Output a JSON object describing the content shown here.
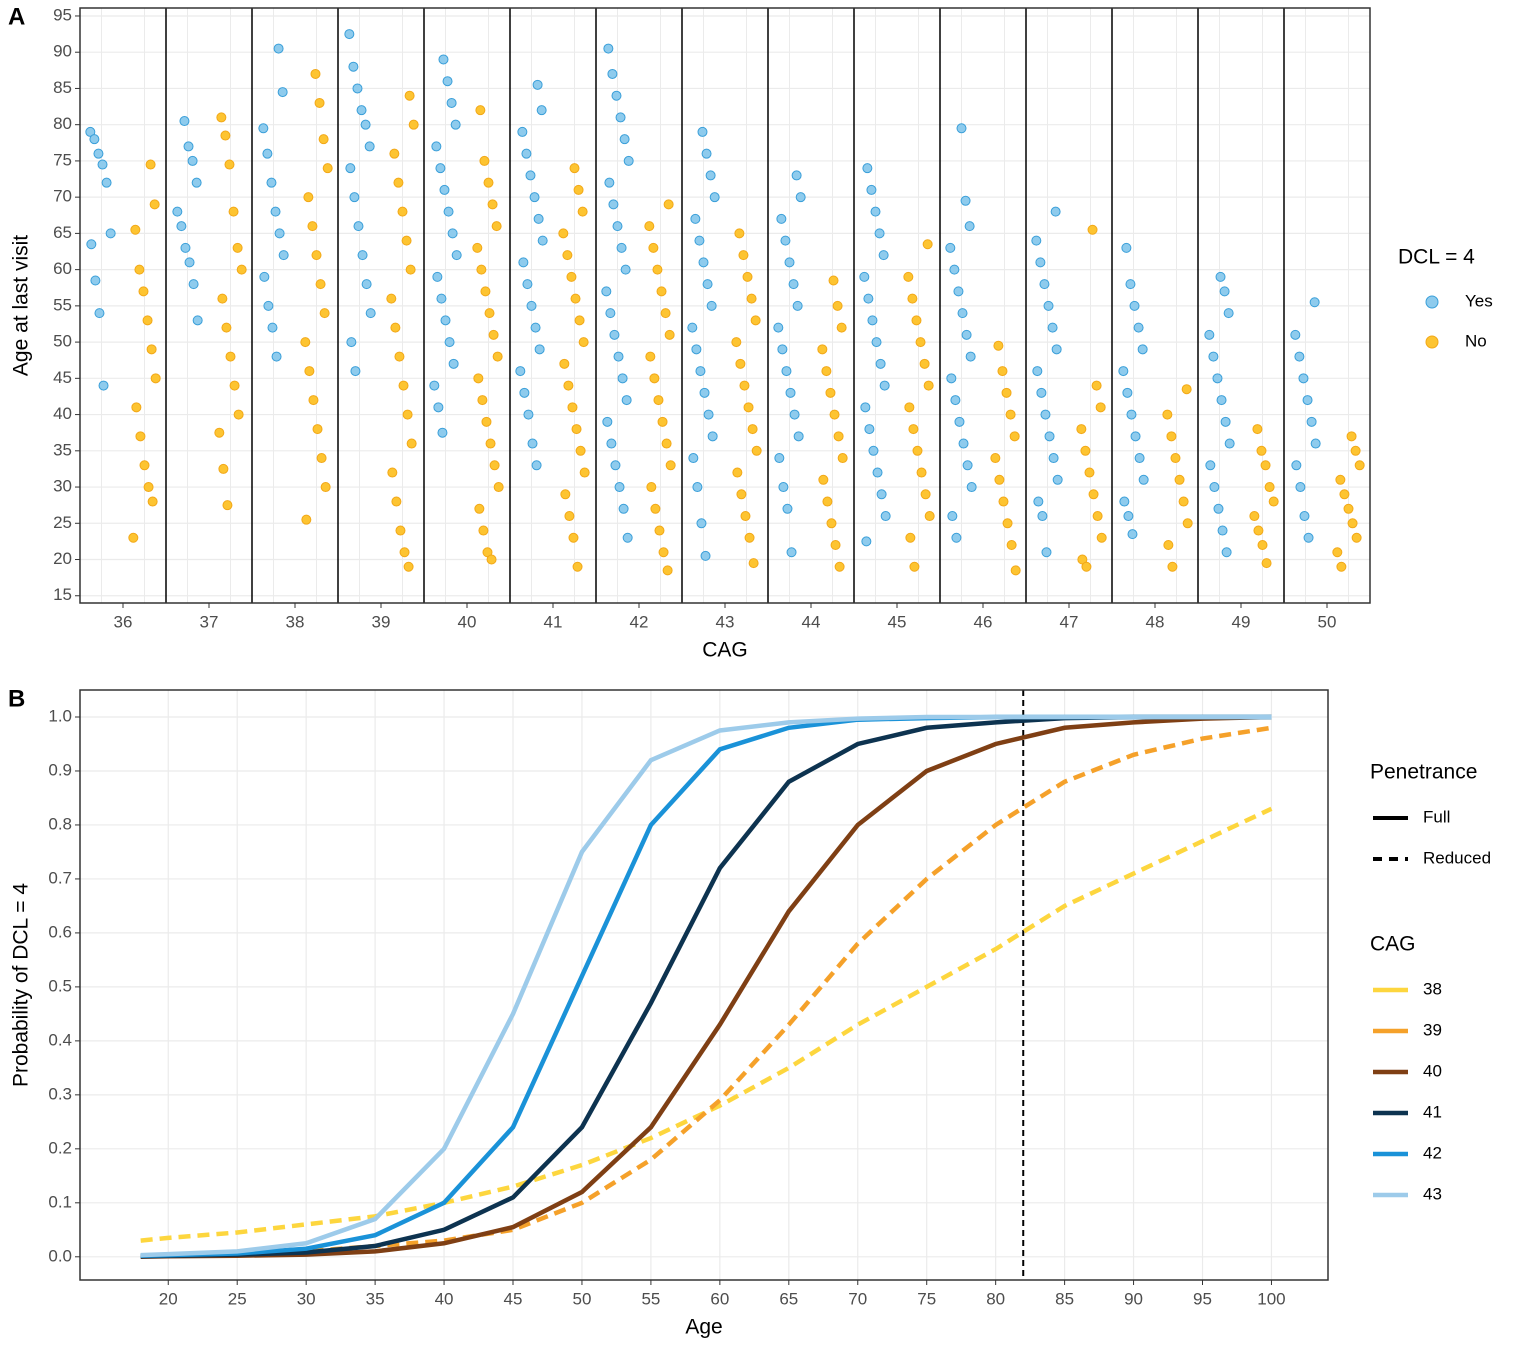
{
  "chart_data": [
    {
      "type": "scatter",
      "panel_label": "A",
      "x_label": "CAG",
      "y_label": "Age at last visit",
      "categories": [
        "36",
        "37",
        "38",
        "39",
        "40",
        "41",
        "42",
        "43",
        "44",
        "45",
        "46",
        "47",
        "48",
        "49",
        "50"
      ],
      "ylim": [
        14,
        96.1
      ],
      "yticks": [
        15,
        20,
        25,
        30,
        35,
        40,
        45,
        50,
        55,
        60,
        65,
        70,
        75,
        80,
        85,
        90,
        95
      ],
      "grid": true,
      "legend_title": "DCL = 4",
      "series": [
        {
          "name": "Yes",
          "color": "#8ecbed",
          "stroke": "#3a9fd9",
          "values": [
            [
              79,
              78,
              76,
              74.5,
              72,
              65,
              63.5,
              58.5,
              54,
              44
            ],
            [
              80.5,
              77,
              75,
              72,
              68,
              66,
              63,
              61,
              58,
              53
            ],
            [
              90.5,
              84.5,
              79.5,
              76,
              72,
              68,
              65,
              62,
              59,
              55,
              52,
              48
            ],
            [
              92.5,
              88,
              85,
              82,
              80,
              77,
              74,
              70,
              66,
              62,
              58,
              54,
              50,
              46
            ],
            [
              89,
              86,
              83,
              80,
              77,
              74,
              71,
              68,
              65,
              62,
              59,
              56,
              53,
              50,
              47,
              44,
              41,
              37.5
            ],
            [
              85.5,
              82,
              79,
              76,
              73,
              70,
              67,
              64,
              61,
              58,
              55,
              52,
              49,
              46,
              43,
              40,
              36,
              33
            ],
            [
              90.5,
              87,
              84,
              81,
              78,
              75,
              72,
              69,
              66,
              63,
              60,
              57,
              54,
              51,
              48,
              45,
              42,
              39,
              36,
              33,
              30,
              27,
              23
            ],
            [
              79,
              76,
              73,
              70,
              67,
              64,
              61,
              58,
              55,
              52,
              49,
              46,
              43,
              40,
              37,
              34,
              30,
              25,
              20.5
            ],
            [
              73,
              70,
              67,
              64,
              61,
              58,
              55,
              52,
              49,
              46,
              43,
              40,
              37,
              34,
              30,
              27,
              21
            ],
            [
              74,
              71,
              68,
              65,
              62,
              59,
              56,
              53,
              50,
              47,
              44,
              41,
              38,
              35,
              32,
              29,
              26,
              22.5
            ],
            [
              79.5,
              69.5,
              66,
              63,
              60,
              57,
              54,
              51,
              48,
              45,
              42,
              39,
              36,
              33,
              30,
              26,
              23
            ],
            [
              68,
              64,
              61,
              58,
              55,
              52,
              49,
              46,
              43,
              40,
              37,
              34,
              31,
              28,
              26,
              21
            ],
            [
              63,
              58,
              55,
              52,
              49,
              46,
              43,
              40,
              37,
              34,
              31,
              28,
              26,
              23.5
            ],
            [
              59,
              57,
              54,
              51,
              48,
              45,
              42,
              39,
              36,
              33,
              30,
              27,
              24,
              21
            ],
            [
              55.5,
              51,
              48,
              45,
              42,
              39,
              36,
              33,
              30,
              26,
              23
            ]
          ]
        },
        {
          "name": "No",
          "color": "#fdc431",
          "stroke": "#f2a818",
          "values": [
            [
              74.5,
              69,
              65.5,
              60,
              57,
              53,
              49,
              45,
              41,
              37,
              33,
              30,
              28,
              23
            ],
            [
              81,
              78.5,
              74.5,
              68,
              63,
              60,
              56,
              52,
              48,
              44,
              40,
              37.5,
              32.5,
              27.5
            ],
            [
              87,
              83,
              78,
              74,
              70,
              66,
              62,
              58,
              54,
              50,
              46,
              42,
              38,
              34,
              30,
              25.5
            ],
            [
              84,
              80,
              76,
              72,
              68,
              64,
              60,
              56,
              52,
              48,
              44,
              40,
              36,
              32,
              28,
              24,
              21,
              19
            ],
            [
              82,
              75,
              72,
              69,
              66,
              63,
              60,
              57,
              54,
              51,
              48,
              45,
              42,
              39,
              36,
              33,
              30,
              27,
              24,
              21,
              20
            ],
            [
              74,
              71,
              68,
              65,
              62,
              59,
              56,
              53,
              50,
              47,
              44,
              41,
              38,
              35,
              32,
              29,
              26,
              23,
              19
            ],
            [
              69,
              66,
              63,
              60,
              57,
              54,
              51,
              48,
              45,
              42,
              39,
              36,
              33,
              30,
              27,
              24,
              21,
              18.5
            ],
            [
              65,
              62,
              59,
              56,
              53,
              50,
              47,
              44,
              41,
              38,
              35,
              32,
              29,
              26,
              23,
              19.5
            ],
            [
              58.5,
              55,
              52,
              49,
              46,
              43,
              40,
              37,
              34,
              31,
              28,
              25,
              22,
              19
            ],
            [
              63.5,
              59,
              56,
              53,
              50,
              47,
              44,
              41,
              38,
              35,
              32,
              29,
              26,
              23,
              19
            ],
            [
              49.5,
              46,
              43,
              40,
              37,
              34,
              31,
              28,
              25,
              22,
              18.5
            ],
            [
              65.5,
              44,
              41,
              38,
              35,
              32,
              29,
              26,
              23,
              20,
              19
            ],
            [
              43.5,
              40,
              37,
              34,
              31,
              28,
              25,
              22,
              19
            ],
            [
              38,
              35,
              33,
              30,
              28,
              26,
              24,
              22,
              19.5
            ],
            [
              37,
              35,
              33,
              31,
              29,
              27,
              25,
              23,
              21,
              19
            ]
          ]
        }
      ]
    },
    {
      "type": "line",
      "panel_label": "B",
      "x_label": "Age",
      "y_label": "Probability of DCL = 4",
      "x": [
        18,
        20,
        25,
        30,
        35,
        40,
        45,
        50,
        55,
        60,
        65,
        70,
        75,
        80,
        85,
        90,
        95,
        100
      ],
      "xlim": [
        13.6,
        104.1
      ],
      "xticks": [
        20,
        25,
        30,
        35,
        40,
        45,
        50,
        55,
        60,
        65,
        70,
        75,
        80,
        85,
        90,
        95,
        100
      ],
      "ylim": [
        -0.043,
        1.05
      ],
      "yticks": [
        {
          "value": 0,
          "label": "0.0"
        },
        0.1,
        0.2,
        0.3,
        0.4,
        0.5,
        0.6,
        0.7,
        0.8,
        0.9,
        {
          "value": 1,
          "label": "1.0"
        }
      ],
      "grid": true,
      "vline": 82,
      "linetype_legend": {
        "title": "Penetrance",
        "items": [
          {
            "label": "Full",
            "linetype": "solid"
          },
          {
            "label": "Reduced",
            "linetype": "dashed"
          }
        ]
      },
      "legend_title": "CAG",
      "series": [
        {
          "name": "38",
          "color": "#fdd63e",
          "linetype": "dashed",
          "values": [
            0.03,
            0.035,
            0.045,
            0.06,
            0.075,
            0.1,
            0.13,
            0.17,
            0.22,
            0.28,
            0.35,
            0.43,
            0.5,
            0.57,
            0.65,
            0.71,
            0.77,
            0.83
          ]
        },
        {
          "name": "39",
          "color": "#f5a12a",
          "linetype": "dashed",
          "values": [
            0.002,
            0.003,
            0.005,
            0.01,
            0.02,
            0.03,
            0.05,
            0.1,
            0.18,
            0.29,
            0.43,
            0.58,
            0.7,
            0.8,
            0.88,
            0.93,
            0.96,
            0.98
          ]
        },
        {
          "name": "40",
          "color": "#7f3f14",
          "linetype": "solid",
          "values": [
            0,
            0.001,
            0.002,
            0.004,
            0.01,
            0.025,
            0.055,
            0.12,
            0.24,
            0.43,
            0.64,
            0.8,
            0.9,
            0.95,
            0.98,
            0.99,
            0.997,
            1
          ]
        },
        {
          "name": "41",
          "color": "#0d3350",
          "linetype": "solid",
          "values": [
            0.001,
            0.002,
            0.004,
            0.008,
            0.02,
            0.05,
            0.11,
            0.24,
            0.47,
            0.72,
            0.88,
            0.95,
            0.98,
            0.99,
            0.998,
            1,
            1,
            1
          ]
        },
        {
          "name": "42",
          "color": "#1a92d8",
          "linetype": "solid",
          "values": [
            0.002,
            0.003,
            0.006,
            0.015,
            0.04,
            0.1,
            0.24,
            0.52,
            0.8,
            0.94,
            0.98,
            0.995,
            0.998,
            1,
            1,
            1,
            1,
            1
          ]
        },
        {
          "name": "43",
          "color": "#9dcbea",
          "linetype": "solid",
          "values": [
            0.003,
            0.005,
            0.01,
            0.025,
            0.07,
            0.2,
            0.45,
            0.75,
            0.92,
            0.975,
            0.99,
            0.997,
            1,
            1,
            1,
            1,
            1,
            1
          ]
        }
      ]
    }
  ]
}
